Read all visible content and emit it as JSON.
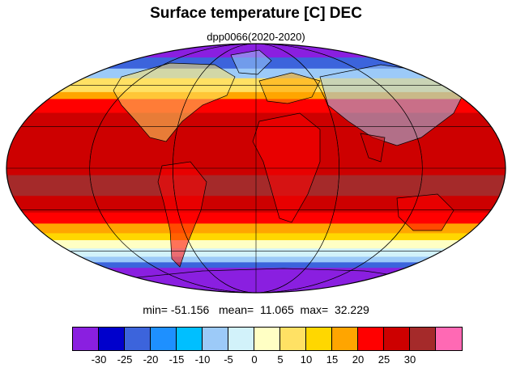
{
  "title": "Surface temperature [C] DEC",
  "subtitle": "dpp0066(2020-2020)",
  "stats": {
    "min_label": "min=",
    "min": "-51.156",
    "mean_label": "mean=",
    "mean": "11.065",
    "max_label": "max=",
    "max": "32.229"
  },
  "colorbar": {
    "colors": [
      "#8a1fe0",
      "#0000cc",
      "#3c64dc",
      "#1e90ff",
      "#00bfff",
      "#9ccaf8",
      "#d2f2fa",
      "#ffffc4",
      "#ffe164",
      "#ffd700",
      "#ffa500",
      "#ff0000",
      "#cd0000",
      "#a52a2a",
      "#ff69b4"
    ],
    "ticks": [
      "-30",
      "-25",
      "-20",
      "-15",
      "-10",
      "-5",
      "0",
      "5",
      "10",
      "15",
      "20",
      "25",
      "30"
    ]
  },
  "chart_data": {
    "type": "heatmap",
    "projection": "mollweide",
    "variable": "Surface temperature",
    "units": "C",
    "month": "DEC",
    "colorbar_levels": [
      -30,
      -25,
      -20,
      -15,
      -10,
      -5,
      0,
      5,
      10,
      15,
      20,
      25,
      30
    ],
    "min": -51.156,
    "mean": 11.065,
    "max": 32.229,
    "zonal_bands": [
      {
        "lat": [
          80,
          90
        ],
        "color": "#8a1fe0"
      },
      {
        "lat": [
          72,
          80
        ],
        "color": "#3c64dc"
      },
      {
        "lat": [
          65,
          72
        ],
        "color": "#9ccaf8"
      },
      {
        "lat": [
          55,
          65
        ],
        "color": "#ffe164"
      },
      {
        "lat": [
          50,
          55
        ],
        "color": "#ffa500"
      },
      {
        "lat": [
          40,
          50
        ],
        "color": "#ff0000"
      },
      {
        "lat": [
          -5,
          40
        ],
        "color": "#cd0000"
      },
      {
        "lat": [
          -20,
          -5
        ],
        "color": "#a52a2a"
      },
      {
        "lat": [
          -32,
          -20
        ],
        "color": "#cd0000"
      },
      {
        "lat": [
          -40,
          -32
        ],
        "color": "#ff0000"
      },
      {
        "lat": [
          -47,
          -40
        ],
        "color": "#ffa500"
      },
      {
        "lat": [
          -52,
          -47
        ],
        "color": "#ffd700"
      },
      {
        "lat": [
          -58,
          -52
        ],
        "color": "#ffffc4"
      },
      {
        "lat": [
          -64,
          -58
        ],
        "color": "#d2f2fa"
      },
      {
        "lat": [
          -68,
          -64
        ],
        "color": "#9ccaf8"
      },
      {
        "lat": [
          -72,
          -68
        ],
        "color": "#3c64dc"
      },
      {
        "lat": [
          -90,
          -72
        ],
        "color": "#8a1fe0"
      }
    ],
    "grid": true,
    "grid_lon_step": 60,
    "grid_lat_step": 30
  }
}
